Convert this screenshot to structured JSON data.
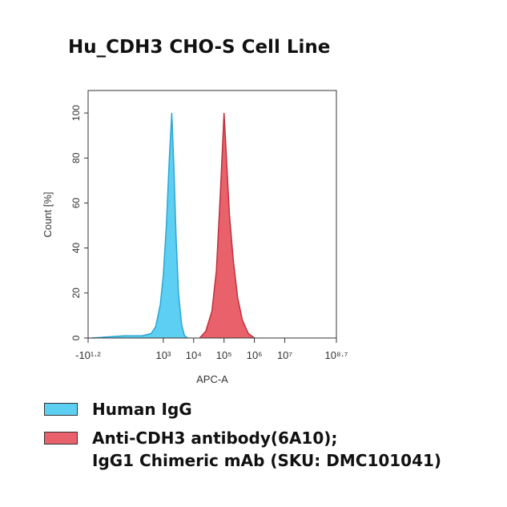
{
  "chart_data": {
    "type": "histogram-overlay",
    "title": "Hu_CDH3 CHO-S Cell Line",
    "x_label": "APC-A",
    "y_label": "Count [%]",
    "xscale": "biexponential",
    "xlim": [
      -15.85,
      501187234
    ],
    "xticks": [
      {
        "value": -15.85,
        "label": "-10¹·²"
      },
      {
        "value": 1000,
        "label": "10³"
      },
      {
        "value": 10000,
        "label": "10⁴"
      },
      {
        "value": 100000,
        "label": "10⁵"
      },
      {
        "value": 1000000,
        "label": "10⁶"
      },
      {
        "value": 10000000,
        "label": "10⁷"
      },
      {
        "value": 501187234,
        "label": "10⁸·⁷"
      }
    ],
    "ylim": [
      0,
      110
    ],
    "yticks": [
      0,
      20,
      40,
      60,
      80,
      100
    ],
    "series": [
      {
        "name": "Human IgG",
        "color": "#5ccff2",
        "edge_color": "#2aa6d6",
        "x": [
          -10,
          50,
          100,
          200,
          400,
          560,
          800,
          1000,
          1260,
          1580,
          1900,
          2240,
          2630,
          3160,
          4000,
          5000,
          6300
        ],
        "values": [
          0,
          1,
          1,
          1,
          2,
          5,
          15,
          28,
          50,
          80,
          100,
          75,
          45,
          20,
          6,
          1,
          0
        ]
      },
      {
        "name": "Anti-CDH3 antibody(6A10);\nIgG1 Chimeric mAb (SKU: DMC101041)",
        "color": "#e8616b",
        "edge_color": "#c0303b",
        "x": [
          15800,
          25000,
          40000,
          56000,
          76000,
          100000,
          120000,
          150000,
          200000,
          280000,
          400000,
          630000,
          1000000
        ],
        "values": [
          0,
          3,
          12,
          30,
          65,
          100,
          80,
          55,
          35,
          18,
          8,
          2,
          0
        ]
      }
    ]
  }
}
